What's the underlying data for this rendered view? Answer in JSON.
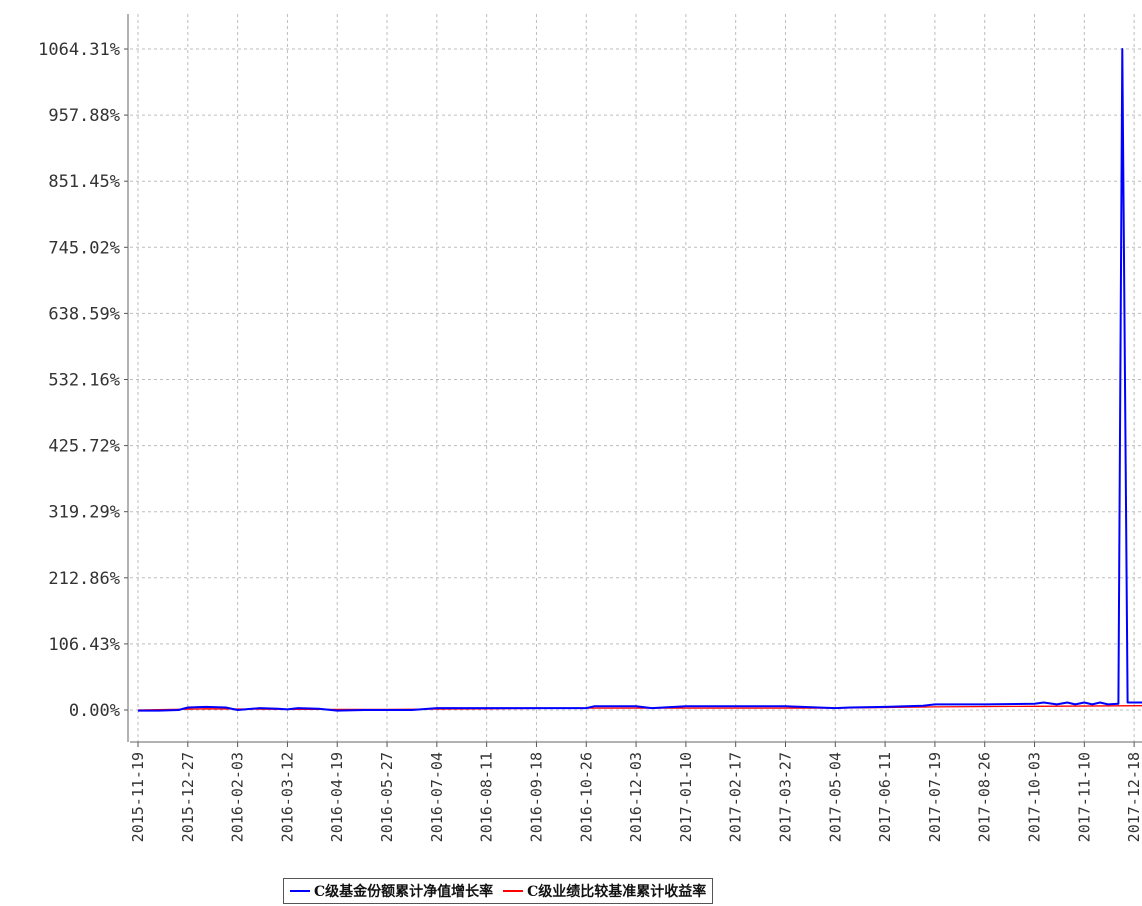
{
  "chart_data": {
    "type": "line",
    "title": "",
    "xlabel": "",
    "ylabel": "",
    "yticks": [
      "1064.31%",
      "957.88%",
      "851.45%",
      "745.02%",
      "638.59%",
      "532.16%",
      "425.72%",
      "319.29%",
      "212.86%",
      "106.43%",
      "0.00%"
    ],
    "ylim": [
      -50,
      1100
    ],
    "xticks": [
      "2015-11-19",
      "2015-12-27",
      "2016-02-03",
      "2016-03-12",
      "2016-04-19",
      "2016-05-27",
      "2016-07-04",
      "2016-08-11",
      "2016-09-18",
      "2016-10-26",
      "2016-12-03",
      "2017-01-10",
      "2017-02-17",
      "2017-03-27",
      "2017-05-04",
      "2017-06-11",
      "2017-07-19",
      "2017-08-26",
      "2017-10-03",
      "2017-11-10",
      "2017-12-18"
    ],
    "xlim": [
      "2015-11-19",
      "2017-12-24"
    ],
    "grid": true,
    "legend_position": "bottom",
    "series": [
      {
        "name": "C级基金份额累计净值增长率",
        "color": "#0000ff",
        "points": [
          [
            "2015-11-19",
            -1
          ],
          [
            "2015-12-05",
            -1
          ],
          [
            "2015-12-20",
            0
          ],
          [
            "2015-12-27",
            4
          ],
          [
            "2016-01-10",
            5
          ],
          [
            "2016-01-25",
            4
          ],
          [
            "2016-02-03",
            0
          ],
          [
            "2016-02-20",
            3
          ],
          [
            "2016-03-05",
            2
          ],
          [
            "2016-03-12",
            1
          ],
          [
            "2016-03-20",
            3
          ],
          [
            "2016-04-05",
            2
          ],
          [
            "2016-04-19",
            -1
          ],
          [
            "2016-05-10",
            0
          ],
          [
            "2016-05-27",
            0
          ],
          [
            "2016-06-15",
            0
          ],
          [
            "2016-07-04",
            3
          ],
          [
            "2016-08-11",
            3
          ],
          [
            "2016-09-18",
            3
          ],
          [
            "2016-10-26",
            3
          ],
          [
            "2016-11-01",
            6
          ],
          [
            "2016-12-03",
            6
          ],
          [
            "2016-12-15",
            3
          ],
          [
            "2017-01-10",
            6
          ],
          [
            "2017-02-17",
            6
          ],
          [
            "2017-03-27",
            6
          ],
          [
            "2017-05-04",
            3
          ],
          [
            "2017-05-15",
            4
          ],
          [
            "2017-06-11",
            5
          ],
          [
            "2017-07-10",
            7
          ],
          [
            "2017-07-19",
            9
          ],
          [
            "2017-08-26",
            9
          ],
          [
            "2017-10-03",
            10
          ],
          [
            "2017-10-10",
            12
          ],
          [
            "2017-10-20",
            9
          ],
          [
            "2017-10-28",
            12
          ],
          [
            "2017-11-03",
            9
          ],
          [
            "2017-11-10",
            12
          ],
          [
            "2017-11-16",
            9
          ],
          [
            "2017-11-22",
            12
          ],
          [
            "2017-11-28",
            9
          ],
          [
            "2017-12-06",
            10
          ],
          [
            "2017-12-09",
            1064.31
          ],
          [
            "2017-12-13",
            12
          ],
          [
            "2017-12-24",
            12
          ]
        ]
      },
      {
        "name": "C级业绩比较基准累计收益率",
        "color": "#ff0000",
        "points": [
          [
            "2015-11-19",
            0
          ],
          [
            "2016-01-10",
            2
          ],
          [
            "2016-03-12",
            1
          ],
          [
            "2016-05-27",
            1
          ],
          [
            "2016-08-11",
            2
          ],
          [
            "2016-10-26",
            3
          ],
          [
            "2017-01-10",
            3
          ],
          [
            "2017-05-04",
            3
          ],
          [
            "2017-07-19",
            5
          ],
          [
            "2017-10-03",
            6
          ],
          [
            "2017-12-24",
            7
          ]
        ]
      }
    ]
  }
}
